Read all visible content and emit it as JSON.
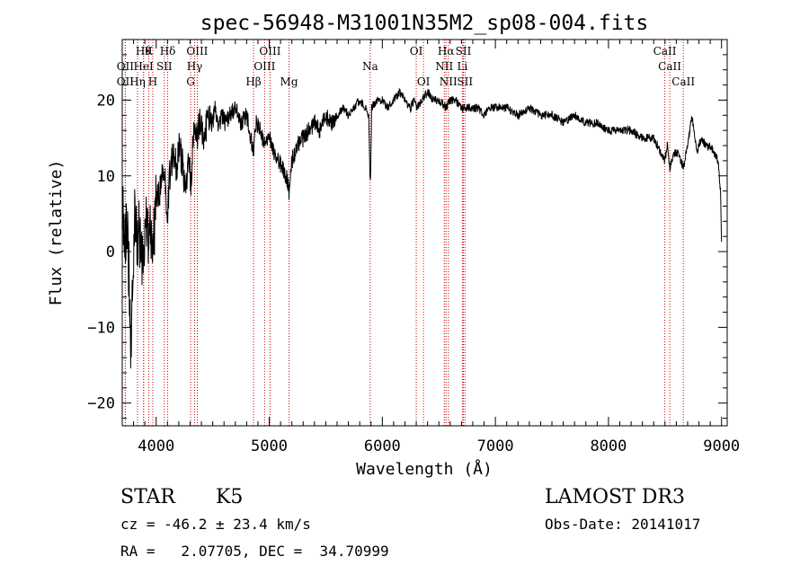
{
  "chart_data": {
    "type": "line",
    "title": "spec-56948-M31001N35M2_sp08-004.fits",
    "xlabel": "Wavelength (Å)",
    "ylabel": "Flux (relative)",
    "xlim": [
      3700,
      9050
    ],
    "ylim": [
      -23,
      28
    ],
    "x_ticks": [
      4000,
      5000,
      6000,
      7000,
      8000,
      9000
    ],
    "y_ticks": [
      -20,
      -10,
      0,
      10,
      20
    ],
    "x_minor_step": 100,
    "y_minor_step": 2,
    "line_color": "#000000",
    "marker_color": "#cc0000",
    "series": [
      {
        "name": "spectrum",
        "points": [
          [
            3700,
            8
          ],
          [
            3720,
            2
          ],
          [
            3740,
            4
          ],
          [
            3760,
            -3
          ],
          [
            3775,
            -12
          ],
          [
            3790,
            -5
          ],
          [
            3810,
            5
          ],
          [
            3830,
            1
          ],
          [
            3850,
            3
          ],
          [
            3870,
            -2
          ],
          [
            3890,
            0
          ],
          [
            3910,
            6
          ],
          [
            3930,
            2
          ],
          [
            3950,
            5
          ],
          [
            3968,
            -1
          ],
          [
            3985,
            4
          ],
          [
            4000,
            6
          ],
          [
            4030,
            8
          ],
          [
            4060,
            10
          ],
          [
            4080,
            9
          ],
          [
            4101,
            5
          ],
          [
            4120,
            10
          ],
          [
            4150,
            13
          ],
          [
            4180,
            11
          ],
          [
            4200,
            14
          ],
          [
            4230,
            12
          ],
          [
            4260,
            8
          ],
          [
            4290,
            12
          ],
          [
            4310,
            9
          ],
          [
            4330,
            16
          ],
          [
            4360,
            15
          ],
          [
            4380,
            17
          ],
          [
            4420,
            15
          ],
          [
            4460,
            18
          ],
          [
            4500,
            17
          ],
          [
            4520,
            19
          ],
          [
            4550,
            16
          ],
          [
            4580,
            18
          ],
          [
            4610,
            17
          ],
          [
            4650,
            18
          ],
          [
            4700,
            19
          ],
          [
            4750,
            17
          ],
          [
            4800,
            18
          ],
          [
            4861,
            13
          ],
          [
            4880,
            17
          ],
          [
            4920,
            16
          ],
          [
            4960,
            14
          ],
          [
            5000,
            15
          ],
          [
            5040,
            13
          ],
          [
            5080,
            12
          ],
          [
            5120,
            11
          ],
          [
            5150,
            10
          ],
          [
            5175,
            8
          ],
          [
            5200,
            12
          ],
          [
            5250,
            14
          ],
          [
            5300,
            15
          ],
          [
            5350,
            16
          ],
          [
            5400,
            17
          ],
          [
            5450,
            16
          ],
          [
            5500,
            18
          ],
          [
            5550,
            17
          ],
          [
            5600,
            18
          ],
          [
            5650,
            19
          ],
          [
            5700,
            18
          ],
          [
            5750,
            19
          ],
          [
            5800,
            20
          ],
          [
            5850,
            19
          ],
          [
            5880,
            18
          ],
          [
            5890,
            10
          ],
          [
            5896,
            9
          ],
          [
            5905,
            19
          ],
          [
            5950,
            20
          ],
          [
            6000,
            20
          ],
          [
            6050,
            19
          ],
          [
            6100,
            20
          ],
          [
            6150,
            21
          ],
          [
            6200,
            20
          ],
          [
            6250,
            19
          ],
          [
            6280,
            20
          ],
          [
            6300,
            19
          ],
          [
            6350,
            20
          ],
          [
            6400,
            21
          ],
          [
            6450,
            20
          ],
          [
            6500,
            20
          ],
          [
            6563,
            19
          ],
          [
            6600,
            20
          ],
          [
            6650,
            20
          ],
          [
            6700,
            19
          ],
          [
            6750,
            19
          ],
          [
            6800,
            19
          ],
          [
            6850,
            19
          ],
          [
            6900,
            18
          ],
          [
            6950,
            19
          ],
          [
            7000,
            19
          ],
          [
            7100,
            19
          ],
          [
            7200,
            18
          ],
          [
            7300,
            19
          ],
          [
            7400,
            18
          ],
          [
            7500,
            18
          ],
          [
            7600,
            17
          ],
          [
            7700,
            18
          ],
          [
            7800,
            17
          ],
          [
            7900,
            17
          ],
          [
            8000,
            16
          ],
          [
            8100,
            16
          ],
          [
            8200,
            16
          ],
          [
            8300,
            15
          ],
          [
            8400,
            15
          ],
          [
            8498,
            12
          ],
          [
            8520,
            14
          ],
          [
            8542,
            11
          ],
          [
            8580,
            13
          ],
          [
            8620,
            13
          ],
          [
            8662,
            11
          ],
          [
            8700,
            14
          ],
          [
            8740,
            18
          ],
          [
            8780,
            13
          ],
          [
            8820,
            15
          ],
          [
            8860,
            14
          ],
          [
            8900,
            14
          ],
          [
            8940,
            13
          ],
          [
            8970,
            12
          ],
          [
            8990,
            8
          ],
          [
            9000,
            1
          ]
        ]
      }
    ],
    "line_markers": [
      {
        "wavelength": 3889,
        "row": 1,
        "label": "Hθ"
      },
      {
        "wavelength": 3727,
        "row": 2,
        "label": "OII"
      },
      {
        "wavelength": 3727,
        "row": 3,
        "label": "OII"
      },
      {
        "wavelength": 3835,
        "row": 3,
        "label": "Hη"
      },
      {
        "wavelength": 3934,
        "row": 1,
        "label": "K"
      },
      {
        "wavelength": 3888,
        "row": 2,
        "label": "HeI"
      },
      {
        "wavelength": 3970,
        "row": 3,
        "label": "H"
      },
      {
        "wavelength": 4072,
        "row": 2,
        "label": "SII"
      },
      {
        "wavelength": 4102,
        "row": 1,
        "label": "Hδ"
      },
      {
        "wavelength": 4340,
        "row": 2,
        "label": "Hγ"
      },
      {
        "wavelength": 4363,
        "row": 1,
        "label": "OIII"
      },
      {
        "wavelength": 4305,
        "row": 3,
        "label": "G"
      },
      {
        "wavelength": 4861,
        "row": 3,
        "label": "Hβ"
      },
      {
        "wavelength": 5007,
        "row": 1,
        "label": "OIII"
      },
      {
        "wavelength": 4959,
        "row": 2,
        "label": "OIII"
      },
      {
        "wavelength": 5175,
        "row": 3,
        "label": "Mg"
      },
      {
        "wavelength": 5893,
        "row": 2,
        "label": "Na"
      },
      {
        "wavelength": 6300,
        "row": 1,
        "label": "OI"
      },
      {
        "wavelength": 6364,
        "row": 3,
        "label": "OI"
      },
      {
        "wavelength": 6563,
        "row": 1,
        "label": "Hα"
      },
      {
        "wavelength": 6548,
        "row": 2,
        "label": "NII"
      },
      {
        "wavelength": 6584,
        "row": 3,
        "label": "NII"
      },
      {
        "wavelength": 6717,
        "row": 1,
        "label": "SII"
      },
      {
        "wavelength": 6708,
        "row": 2,
        "label": "Li"
      },
      {
        "wavelength": 6731,
        "row": 3,
        "label": "SII"
      },
      {
        "wavelength": 8498,
        "row": 1,
        "label": "CaII"
      },
      {
        "wavelength": 8542,
        "row": 2,
        "label": "CaII"
      },
      {
        "wavelength": 8662,
        "row": 3,
        "label": "CaII"
      }
    ]
  },
  "info": {
    "class_label": "STAR",
    "subclass_label": "K5",
    "survey": "LAMOST DR3",
    "cz": "cz = -46.2 ± 23.4 km/s",
    "obs_date": "Obs-Date: 20141017",
    "ra_dec": "RA =   2.07705, DEC =  34.70999"
  }
}
